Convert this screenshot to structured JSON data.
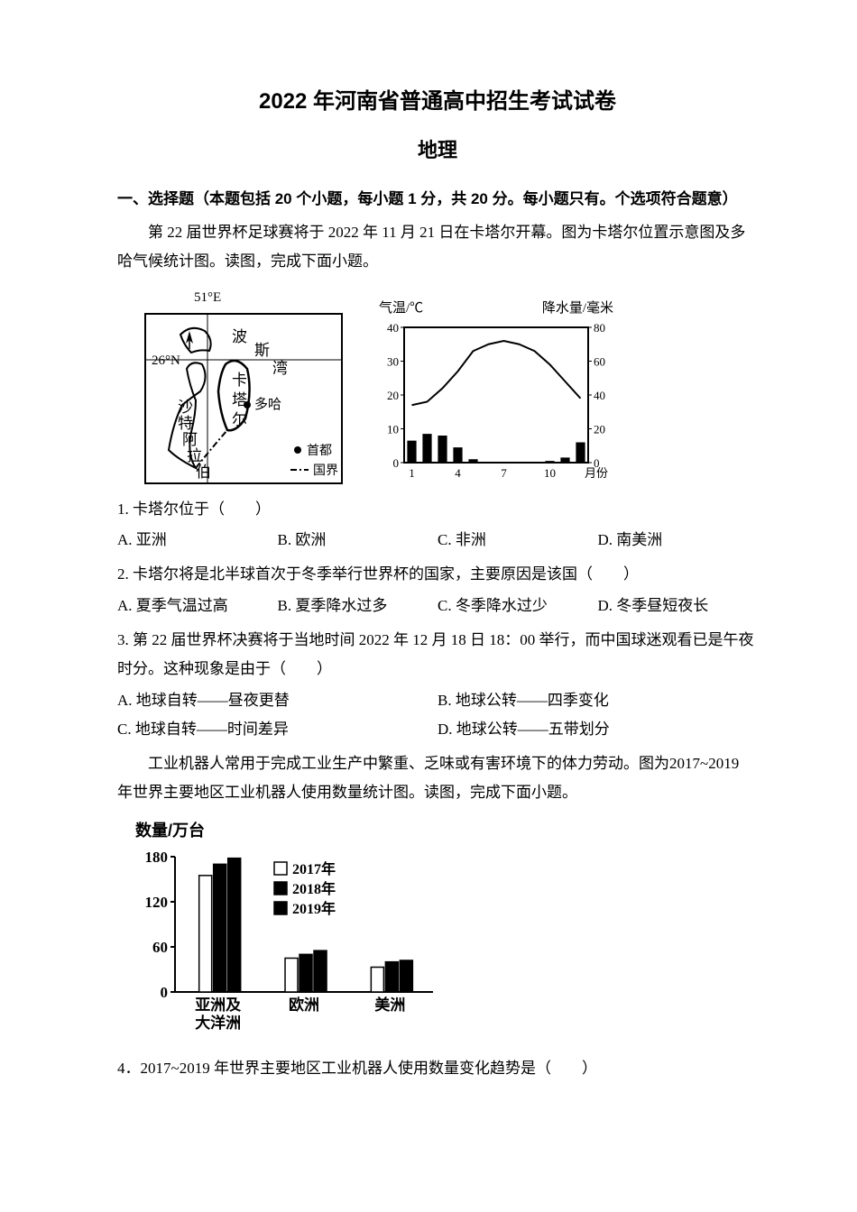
{
  "title_main": "2022 年河南省普通高中招生考试试卷",
  "title_sub": "地理",
  "section1_header": "一、选择题（本题包括 20 个小题，每小题 1 分，共 20 分。每小题只有。个选项符合题意）",
  "passage1": "第 22 届世界杯足球赛将于 2022 年 11 月 21 日在卡塔尔开幕。图为卡塔尔位置示意图及多哈气候统计图。读图，完成下面小题。",
  "map": {
    "lon_label": "51°E",
    "lat_label": "26°N",
    "label_bo": "波",
    "label_si": "斯",
    "label_wan": "湾",
    "label_ka": "卡",
    "label_ta": "塔",
    "label_er": "尔",
    "label_duoha": "多哈",
    "label_sha": "沙",
    "label_te": "特",
    "label_a": "阿",
    "label_la": "拉",
    "label_bo2": "伯",
    "legend_capital": "首都",
    "legend_border": "国界"
  },
  "climate": {
    "left_axis_label": "气温/℃",
    "right_axis_label": "降水量/毫米",
    "x_label": "月份",
    "temp_ticks": [
      0,
      10,
      20,
      30,
      40
    ],
    "precip_ticks": [
      0,
      20,
      40,
      60,
      80
    ],
    "x_ticks": [
      1,
      4,
      7,
      10
    ],
    "temp_values": [
      17,
      18,
      22,
      27,
      33,
      35,
      36,
      35,
      33,
      29,
      24,
      19
    ],
    "precip_values": [
      13,
      17,
      16,
      9,
      2,
      0,
      0,
      0,
      0,
      1,
      3,
      12
    ],
    "temp_color": "#000000",
    "bar_color": "#000000",
    "border_color": "#000000",
    "bg_color": "#ffffff"
  },
  "q1": {
    "stem": "1. 卡塔尔位于（　　）",
    "A": "A. 亚洲",
    "B": "B. 欧洲",
    "C": "C. 非洲",
    "D": "D. 南美洲"
  },
  "q2": {
    "stem": "2. 卡塔尔将是北半球首次于冬季举行世界杯的国家，主要原因是该国（　　）",
    "A": "A. 夏季气温过高",
    "B": "B. 夏季降水过多",
    "C": "C. 冬季降水过少",
    "D": "D. 冬季昼短夜长"
  },
  "q3": {
    "stem": "3. 第 22 届世界杯决赛将于当地时间 2022 年 12 月 18 日 18：00 举行，而中国球迷观看已是午夜时分。这种现象是由于（　　）",
    "A": "A. 地球自转——昼夜更替",
    "B": "B. 地球公转——四季变化",
    "C": "C. 地球自转——时间差异",
    "D": "D. 地球公转——五带划分"
  },
  "passage2": "工业机器人常用于完成工业生产中繁重、乏味或有害环境下的体力劳动。图为2017~2019 年世界主要地区工业机器人使用数量统计图。读图，完成下面小题。",
  "robot_chart": {
    "y_title": "数量/万台",
    "y_ticks": [
      0,
      60,
      120,
      180
    ],
    "categories": [
      "亚洲及大洋洲",
      "欧洲",
      "美洲"
    ],
    "legend": [
      "2017年",
      "2018年",
      "2019年"
    ],
    "legend_fills": [
      "#ffffff",
      "#000000",
      "#000000"
    ],
    "series_2017": [
      155,
      45,
      33
    ],
    "series_2018": [
      170,
      50,
      40
    ],
    "series_2019": [
      178,
      55,
      42
    ],
    "y_max": 180,
    "bar_border": "#000000",
    "bg": "#ffffff",
    "font_family": "SimHei"
  },
  "q4": {
    "stem": "4．2017~2019 年世界主要地区工业机器人使用数量变化趋势是（　　）"
  }
}
